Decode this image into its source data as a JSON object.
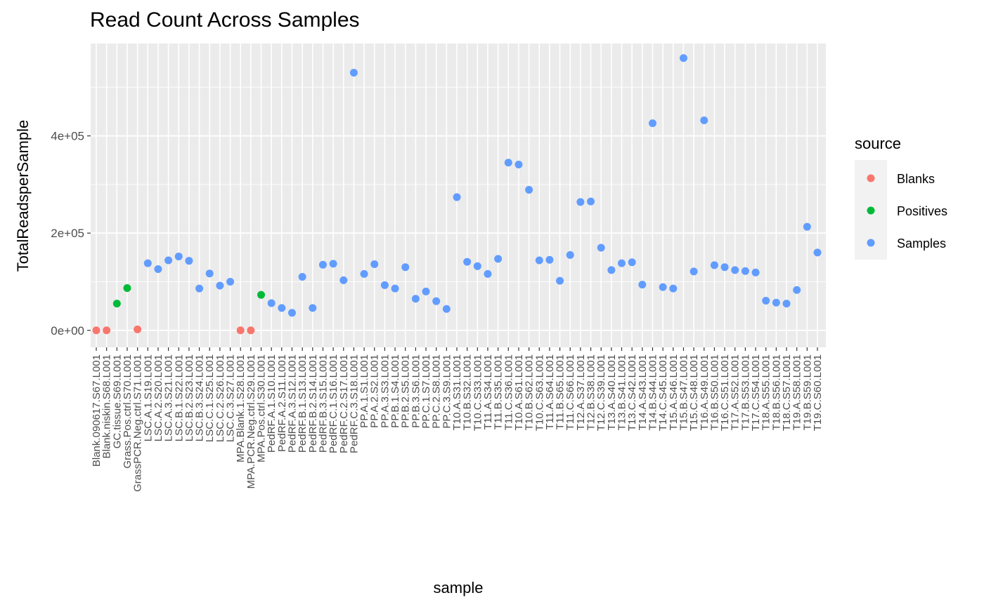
{
  "chart_data": {
    "type": "scatter",
    "title": "Read Count Across Samples",
    "xlabel": "sample",
    "ylabel": "TotalReadsperSample",
    "ylim": [
      -35000,
      590000
    ],
    "yticks": [
      0,
      200000,
      400000
    ],
    "ytick_labels": [
      "0e+00",
      "2e+05",
      "4e+05"
    ],
    "grid": true,
    "legend": {
      "title": "source",
      "placement": "right",
      "entries": [
        {
          "label": "Blanks",
          "color": "#F8766D"
        },
        {
          "label": "Positives",
          "color": "#00BA38"
        },
        {
          "label": "Samples",
          "color": "#619CFF"
        }
      ]
    },
    "points": [
      {
        "sample": "Blank.090617.S67.L001",
        "value": 0,
        "source": "Blanks"
      },
      {
        "sample": "Blank.niskin.S68.L001",
        "value": 0,
        "source": "Blanks"
      },
      {
        "sample": "GC.tissue.S69.L001",
        "value": 55000,
        "source": "Positives"
      },
      {
        "sample": "Grass.Pos.ctrl.S70.L001",
        "value": 87000,
        "source": "Positives"
      },
      {
        "sample": "GrassPCR.Neg.ctrl.S71.L001",
        "value": 2000,
        "source": "Blanks"
      },
      {
        "sample": "LSC.A.1.S19.L001",
        "value": 138000,
        "source": "Samples"
      },
      {
        "sample": "LSC.A.2.S20.L001",
        "value": 126000,
        "source": "Samples"
      },
      {
        "sample": "LSC.A.3.S21.L001",
        "value": 144000,
        "source": "Samples"
      },
      {
        "sample": "LSC.B.1.S22.L001",
        "value": 152000,
        "source": "Samples"
      },
      {
        "sample": "LSC.B.2.S23.L001",
        "value": 143000,
        "source": "Samples"
      },
      {
        "sample": "LSC.B.3.S24.L001",
        "value": 86000,
        "source": "Samples"
      },
      {
        "sample": "LSC.C.1.S25.L001",
        "value": 117000,
        "source": "Samples"
      },
      {
        "sample": "LSC.C.2.S26.L001",
        "value": 92000,
        "source": "Samples"
      },
      {
        "sample": "LSC.C.3.S27.L001",
        "value": 100000,
        "source": "Samples"
      },
      {
        "sample": "MPA.Blank.1.S28.L001",
        "value": 0,
        "source": "Blanks"
      },
      {
        "sample": "MPA.PCR.Neg.ctrl.S29.L001",
        "value": 0,
        "source": "Blanks"
      },
      {
        "sample": "MPA.Pos.ctrl.S30.L001",
        "value": 73000,
        "source": "Positives"
      },
      {
        "sample": "PedRF.A.1.S10.L001",
        "value": 56000,
        "source": "Samples"
      },
      {
        "sample": "PedRF.A.2.S11.L001",
        "value": 46000,
        "source": "Samples"
      },
      {
        "sample": "PedRF.A.3.S12.L001",
        "value": 36000,
        "source": "Samples"
      },
      {
        "sample": "PedRF.B.1.S13.L001",
        "value": 110000,
        "source": "Samples"
      },
      {
        "sample": "PedRF.B.2.S14.L001",
        "value": 46000,
        "source": "Samples"
      },
      {
        "sample": "PedRF.B.3.S15.L001",
        "value": 135000,
        "source": "Samples"
      },
      {
        "sample": "PedRF.C.1.S16.L001",
        "value": 137000,
        "source": "Samples"
      },
      {
        "sample": "PedRF.C.2.S17.L001",
        "value": 103000,
        "source": "Samples"
      },
      {
        "sample": "PedRF.C.3.S18.L001",
        "value": 530000,
        "source": "Samples"
      },
      {
        "sample": "PP.A.1.S1.L001",
        "value": 116000,
        "source": "Samples"
      },
      {
        "sample": "PP.A.2.S2.L001",
        "value": 136000,
        "source": "Samples"
      },
      {
        "sample": "PP.A.3.S3.L001",
        "value": 93000,
        "source": "Samples"
      },
      {
        "sample": "PP.B.1.S4.L001",
        "value": 86000,
        "source": "Samples"
      },
      {
        "sample": "PP.B.2.S5.L001",
        "value": 130000,
        "source": "Samples"
      },
      {
        "sample": "PP.B.3.S6.L001",
        "value": 65000,
        "source": "Samples"
      },
      {
        "sample": "PP.C.1.S7.L001",
        "value": 80000,
        "source": "Samples"
      },
      {
        "sample": "PP.C.2.S8.L001",
        "value": 60000,
        "source": "Samples"
      },
      {
        "sample": "PP.C.3.S9.L001",
        "value": 44000,
        "source": "Samples"
      },
      {
        "sample": "T10.A.S31.L001",
        "value": 274000,
        "source": "Samples"
      },
      {
        "sample": "T10.B.S32.L001",
        "value": 141000,
        "source": "Samples"
      },
      {
        "sample": "T10.C.S33.L001",
        "value": 132000,
        "source": "Samples"
      },
      {
        "sample": "T11.A.S34.L001",
        "value": 116000,
        "source": "Samples"
      },
      {
        "sample": "T11.B.S35.L001",
        "value": 147000,
        "source": "Samples"
      },
      {
        "sample": "T11.C.S36.L001",
        "value": 345000,
        "source": "Samples"
      },
      {
        "sample": "T10.A.S61.L001",
        "value": 341000,
        "source": "Samples"
      },
      {
        "sample": "T10.B.S62.L001",
        "value": 289000,
        "source": "Samples"
      },
      {
        "sample": "T10.C.S63.L001",
        "value": 144000,
        "source": "Samples"
      },
      {
        "sample": "T11.A.S64.L001",
        "value": 145000,
        "source": "Samples"
      },
      {
        "sample": "T11.B.S65.L001",
        "value": 102000,
        "source": "Samples"
      },
      {
        "sample": "T11.C.S66.L001",
        "value": 155000,
        "source": "Samples"
      },
      {
        "sample": "T12.A.S37.L001",
        "value": 264000,
        "source": "Samples"
      },
      {
        "sample": "T12.B.S38.L001",
        "value": 265000,
        "source": "Samples"
      },
      {
        "sample": "T12.C.S39.L001",
        "value": 170000,
        "source": "Samples"
      },
      {
        "sample": "T13.A.S40.L001",
        "value": 124000,
        "source": "Samples"
      },
      {
        "sample": "T13.B.S41.L001",
        "value": 138000,
        "source": "Samples"
      },
      {
        "sample": "T13.C.S42.L001",
        "value": 140000,
        "source": "Samples"
      },
      {
        "sample": "T14.A.S43.L001",
        "value": 94000,
        "source": "Samples"
      },
      {
        "sample": "T14.B.S44.L001",
        "value": 426000,
        "source": "Samples"
      },
      {
        "sample": "T14.C.S45.L001",
        "value": 89000,
        "source": "Samples"
      },
      {
        "sample": "T15.A.S46.L001",
        "value": 86000,
        "source": "Samples"
      },
      {
        "sample": "T15.B.S47.L001",
        "value": 560000,
        "source": "Samples"
      },
      {
        "sample": "T15.C.S48.L001",
        "value": 121000,
        "source": "Samples"
      },
      {
        "sample": "T16.A.S49.L001",
        "value": 432000,
        "source": "Samples"
      },
      {
        "sample": "T16.B.S50.L001",
        "value": 134000,
        "source": "Samples"
      },
      {
        "sample": "T16.C.S51.L001",
        "value": 130000,
        "source": "Samples"
      },
      {
        "sample": "T17.A.S52.L001",
        "value": 124000,
        "source": "Samples"
      },
      {
        "sample": "T17.B.S53.L001",
        "value": 122000,
        "source": "Samples"
      },
      {
        "sample": "T17.C.S54.L001",
        "value": 119000,
        "source": "Samples"
      },
      {
        "sample": "T18.A.S55.L001",
        "value": 61000,
        "source": "Samples"
      },
      {
        "sample": "T18.B.S56.L001",
        "value": 57000,
        "source": "Samples"
      },
      {
        "sample": "T18.C.S57.L001",
        "value": 55000,
        "source": "Samples"
      },
      {
        "sample": "T19.A.S58.L001",
        "value": 83000,
        "source": "Samples"
      },
      {
        "sample": "T19.B.S59.L001",
        "value": 213000,
        "source": "Samples"
      },
      {
        "sample": "T19.C.S60.L001",
        "value": 160000,
        "source": "Samples"
      }
    ]
  }
}
